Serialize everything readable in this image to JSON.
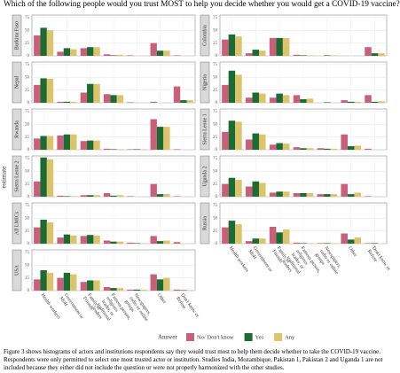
{
  "chart_data": {
    "type": "bar",
    "title": "Which of the following people would you trust MOST to help you decide whether you would get a COVID-19 vaccine?",
    "y_label": "estimate",
    "legend_title": "Answer",
    "categories": [
      "Health workers",
      "Government or MoH",
      "Family or Friends",
      "Famous person, religious leader, or traditional leaders",
      "Newspapers, radio or online groups",
      "Other",
      "Don't know or Refuse"
    ],
    "series": [
      {
        "name": "No/ Don't know",
        "color": "#c8607a"
      },
      {
        "name": "Yes",
        "color": "#1b6b33"
      },
      {
        "name": "Any",
        "color": "#dcc46a"
      }
    ],
    "ylim": [
      0,
      80
    ],
    "yticks": [
      0,
      25,
      50,
      75
    ],
    "grid": true,
    "panels": [
      {
        "name": "Burkina Faso",
        "values": [
          [
            40,
            8,
            15,
            3,
            1,
            25,
            1
          ],
          [
            55,
            15,
            17,
            1,
            0,
            10,
            0
          ],
          [
            50,
            13,
            17,
            2,
            0,
            10,
            0
          ]
        ]
      },
      {
        "name": "Nepal",
        "values": [
          [
            35,
            2,
            20,
            17,
            1,
            2,
            32
          ],
          [
            48,
            2,
            37,
            15,
            0,
            0,
            5
          ],
          [
            47,
            2,
            37,
            15,
            0,
            0,
            5
          ]
        ]
      },
      {
        "name": "Rwanda",
        "values": [
          [
            22,
            28,
            17,
            2,
            1,
            60,
            1
          ],
          [
            27,
            30,
            18,
            1,
            1,
            45,
            0
          ],
          [
            27,
            30,
            18,
            1,
            1,
            45,
            0
          ]
        ]
      },
      {
        "name": "Sierra Leone 2",
        "values": [
          [
            30,
            2,
            3,
            7,
            1,
            25,
            1
          ],
          [
            77,
            1,
            3,
            2,
            0,
            5,
            0
          ],
          [
            73,
            1,
            3,
            3,
            0,
            5,
            0
          ]
        ]
      },
      {
        "name": "All LMICs",
        "values": [
          [
            32,
            12,
            15,
            6,
            2,
            15,
            3
          ],
          [
            47,
            18,
            17,
            4,
            1,
            5,
            0
          ],
          [
            42,
            16,
            16,
            4,
            1,
            6,
            0
          ]
        ]
      },
      {
        "name": "USA",
        "values": [
          [
            22,
            25,
            17,
            7,
            2,
            32,
            2
          ],
          [
            40,
            35,
            20,
            5,
            2,
            22,
            1
          ],
          [
            35,
            32,
            20,
            5,
            2,
            25,
            1
          ]
        ]
      },
      {
        "name": "Colombia",
        "values": [
          [
            32,
            5,
            35,
            2,
            0,
            0,
            17
          ],
          [
            42,
            12,
            35,
            1,
            1,
            0,
            5
          ],
          [
            38,
            10,
            35,
            1,
            1,
            0,
            5
          ]
        ]
      },
      {
        "name": "Nigeria",
        "values": [
          [
            35,
            10,
            10,
            15,
            0,
            5,
            15
          ],
          [
            63,
            20,
            18,
            7,
            1,
            2,
            2
          ],
          [
            55,
            18,
            15,
            8,
            0,
            2,
            3
          ]
        ]
      },
      {
        "name": "Sierra Leone 1",
        "values": [
          [
            35,
            20,
            10,
            5,
            3,
            30,
            2
          ],
          [
            57,
            32,
            13,
            3,
            2,
            7,
            0
          ],
          [
            55,
            30,
            12,
            3,
            2,
            8,
            0
          ]
        ]
      },
      {
        "name": "Uganda 2",
        "values": [
          [
            25,
            20,
            8,
            7,
            5,
            25,
            1
          ],
          [
            37,
            30,
            10,
            7,
            5,
            5,
            0
          ],
          [
            33,
            27,
            10,
            7,
            5,
            8,
            0
          ]
        ]
      },
      {
        "name": "Russia",
        "values": [
          [
            32,
            5,
            33,
            2,
            1,
            20,
            1
          ],
          [
            45,
            10,
            22,
            1,
            1,
            8,
            1
          ],
          [
            38,
            10,
            28,
            1,
            1,
            12,
            0
          ]
        ]
      }
    ]
  },
  "caption": "Figure 3 shows histograms of actors and institutions respondents say they would trust most to help them decide whether to take the COVID-19 vaccine. Respondents were only permitted to select one most trusted actor or institution. Studies India, Mozambique, Pakistan 1, Pakistan 2 and Uganda 1 are not included because they either did not include the question or were not properly harmonized with the other studies."
}
